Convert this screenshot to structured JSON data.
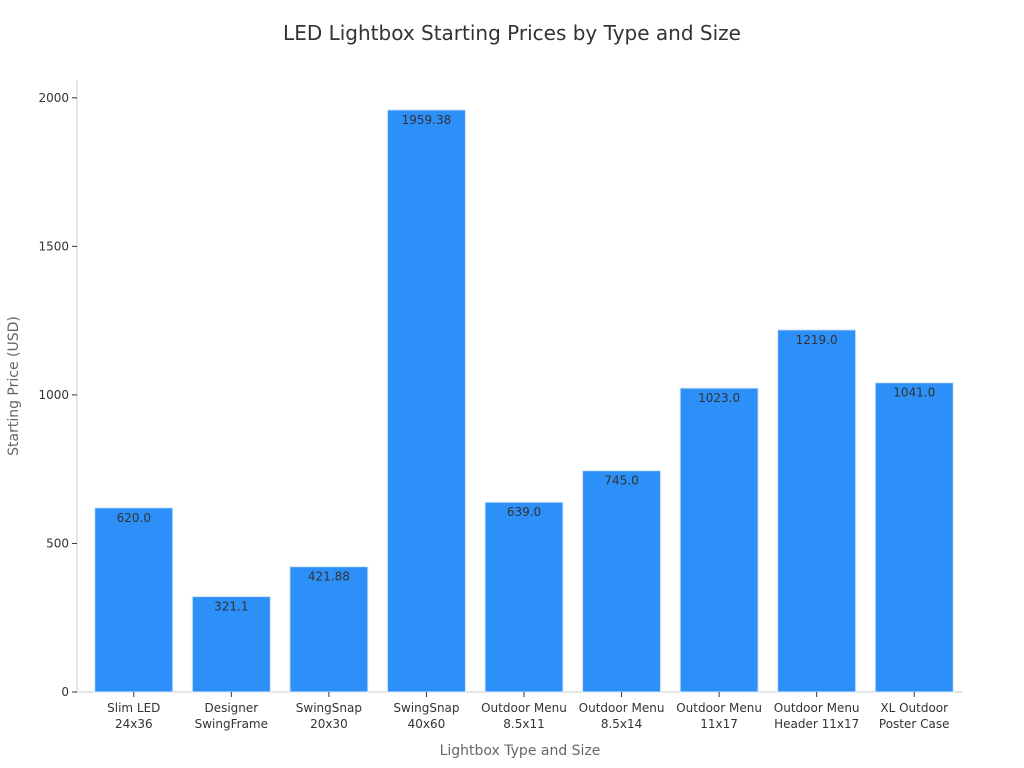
{
  "chart_data": {
    "type": "bar",
    "title": "LED Lightbox Starting Prices by Type and Size",
    "xlabel": "Lightbox Type and Size",
    "ylabel": "Starting Price (USD)",
    "categories": [
      [
        "Slim LED",
        "24x36"
      ],
      [
        "Designer",
        "SwingFrame"
      ],
      [
        "SwingSnap",
        "20x30"
      ],
      [
        "SwingSnap",
        "40x60"
      ],
      [
        "Outdoor Menu",
        "8.5x11"
      ],
      [
        "Outdoor Menu",
        "8.5x14"
      ],
      [
        "Outdoor Menu",
        "11x17"
      ],
      [
        "Outdoor Menu",
        "Header 11x17"
      ],
      [
        "XL Outdoor",
        "Poster Case"
      ]
    ],
    "values": [
      620.0,
      321.1,
      421.88,
      1959.38,
      639.0,
      745.0,
      1023.0,
      1219.0,
      1041.0
    ],
    "value_labels": [
      "620.0",
      "321.1",
      "421.88",
      "1959.38",
      "639.0",
      "745.0",
      "1023.0",
      "1219.0",
      "1041.0"
    ],
    "ylim": [
      0,
      2060
    ],
    "yticks": [
      0,
      500,
      1000,
      1500,
      2000
    ],
    "grid": false,
    "legend": "none",
    "colors": {
      "bar": "#2d8ff8",
      "bar_edge": "#d9e8fb",
      "axis": "#cccccc",
      "text": "#333333",
      "axis_label": "#666666"
    }
  }
}
